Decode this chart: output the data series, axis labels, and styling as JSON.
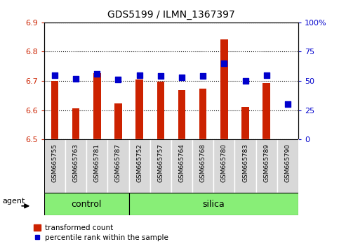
{
  "title": "GDS5199 / ILMN_1367397",
  "samples": [
    "GSM665755",
    "GSM665763",
    "GSM665781",
    "GSM665787",
    "GSM665752",
    "GSM665757",
    "GSM665764",
    "GSM665768",
    "GSM665780",
    "GSM665783",
    "GSM665789",
    "GSM665790"
  ],
  "red_values": [
    6.7,
    6.607,
    6.727,
    6.622,
    6.705,
    6.697,
    6.668,
    6.673,
    6.843,
    6.612,
    6.693,
    6.5
  ],
  "blue_values": [
    55,
    52,
    56,
    51,
    55,
    54,
    53,
    54,
    65,
    50,
    55,
    30
  ],
  "ylim_left": [
    6.5,
    6.9
  ],
  "ylim_right": [
    0,
    100
  ],
  "yticks_left": [
    6.5,
    6.6,
    6.7,
    6.8,
    6.9
  ],
  "yticks_right": [
    0,
    25,
    50,
    75,
    100
  ],
  "ytick_labels_right": [
    "0",
    "25",
    "50",
    "75",
    "100%"
  ],
  "control_count": 4,
  "silica_count": 8,
  "bar_color": "#cc2200",
  "dot_color": "#0000cc",
  "control_color": "#88ee77",
  "silica_color": "#88ee77",
  "gray_bg": "#d8d8d8",
  "agent_label": "agent",
  "control_label": "control",
  "silica_label": "silica",
  "legend_red": "transformed count",
  "legend_blue": "percentile rank within the sample",
  "bar_width": 0.35,
  "dot_size": 28
}
